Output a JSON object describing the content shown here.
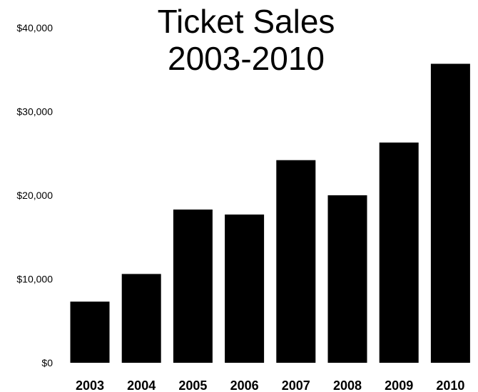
{
  "chart_data": {
    "type": "bar",
    "title_lines": [
      "Ticket Sales",
      "2003-2010"
    ],
    "categories": [
      "2003",
      "2004",
      "2005",
      "2006",
      "2007",
      "2008",
      "2009",
      "2010"
    ],
    "values": [
      7300,
      10600,
      18300,
      17700,
      24200,
      20000,
      26300,
      35700
    ],
    "xlabel": "",
    "ylabel": "",
    "ylim": [
      0,
      40000
    ],
    "yticks": [
      0,
      10000,
      20000,
      30000,
      40000
    ],
    "ytick_labels": [
      "$0",
      "$10,000",
      "$20,000",
      "$30,000",
      "$40,000"
    ],
    "grid": false,
    "legend": false,
    "bar_color": "#000000"
  }
}
